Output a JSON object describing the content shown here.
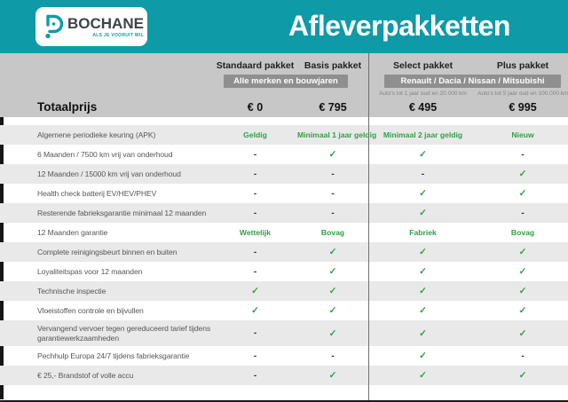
{
  "header": {
    "title": "Afleverpakketten",
    "logo": {
      "brand": "BOCHANE",
      "tagline": "ALS JE VOORUIT WIL"
    }
  },
  "table": {
    "total_label": "Totaalprijs",
    "groups": [
      {
        "badge": "Alle merken en bouwjaren"
      },
      {
        "badge": "Renault / Dacia / Nissan / Mitsubishi"
      }
    ],
    "columns": [
      {
        "name": "Standaard pakket",
        "note": "",
        "price": "€ 0"
      },
      {
        "name": "Basis pakket",
        "note": "",
        "price": "€ 795"
      },
      {
        "name": "Select pakket",
        "note": "Auto's tot 1 jaar oud en 20.000 km",
        "price": "€ 495"
      },
      {
        "name": "Plus pakket",
        "note": "Auto's tot 5 jaar oud en 100.000 km",
        "price": "€ 995"
      }
    ],
    "rows": [
      {
        "label": "Algemene periodieke keuring (APK)",
        "values": [
          "Geldig",
          "Minimaal 1 jaar geldig",
          "Minimaal 2 jaar geldig",
          "Nieuw"
        ]
      },
      {
        "label": "6 Maanden / 7500 km vrij van onderhoud",
        "values": [
          "-",
          "✓",
          "✓",
          "-"
        ]
      },
      {
        "label": "12 Maanden / 15000 km vrij van onderhoud",
        "values": [
          "-",
          "-",
          "-",
          "✓"
        ]
      },
      {
        "label": "Health check batterij EV/HEV/PHEV",
        "values": [
          "-",
          "-",
          "✓",
          "✓"
        ]
      },
      {
        "label": "Resterende fabrieksgarantie minimaal 12 maanden",
        "values": [
          "-",
          "-",
          "✓",
          "-"
        ]
      },
      {
        "label": "12 Maanden garantie",
        "values": [
          "Wettelijk",
          "Bovag",
          "Fabriek",
          "Bovag"
        ]
      },
      {
        "label": "Complete reinigingsbeurt binnen en buiten",
        "values": [
          "-",
          "✓",
          "✓",
          "✓"
        ]
      },
      {
        "label": "Loyaliteitspas voor 12 maanden",
        "values": [
          "-",
          "✓",
          "✓",
          "✓"
        ]
      },
      {
        "label": "Technische inspectie",
        "values": [
          "✓",
          "✓",
          "✓",
          "✓"
        ]
      },
      {
        "label": "Vloeistoffen controle en bijvullen",
        "values": [
          "✓",
          "✓",
          "✓",
          "✓"
        ]
      },
      {
        "label": "Vervangend vervoer tegen gereduceerd tarief tijdens garantiewerkzaamheden",
        "values": [
          "-",
          "✓",
          "✓",
          "✓"
        ]
      },
      {
        "label": "Pechhulp Europa 24/7 tijdens fabrieksgarantie",
        "values": [
          "-",
          "-",
          "✓",
          "-"
        ]
      },
      {
        "label": "€ 25,- Brandstof of volle accu",
        "values": [
          "-",
          "✓",
          "✓",
          "✓"
        ]
      }
    ]
  },
  "colors": {
    "teal": "#0e9aa7",
    "green": "#2fa043",
    "band_gray": "#c7c7c7",
    "badge_gray": "#8f8f8f",
    "row_gray": "#e9e9e9",
    "edge_black": "#161616"
  }
}
